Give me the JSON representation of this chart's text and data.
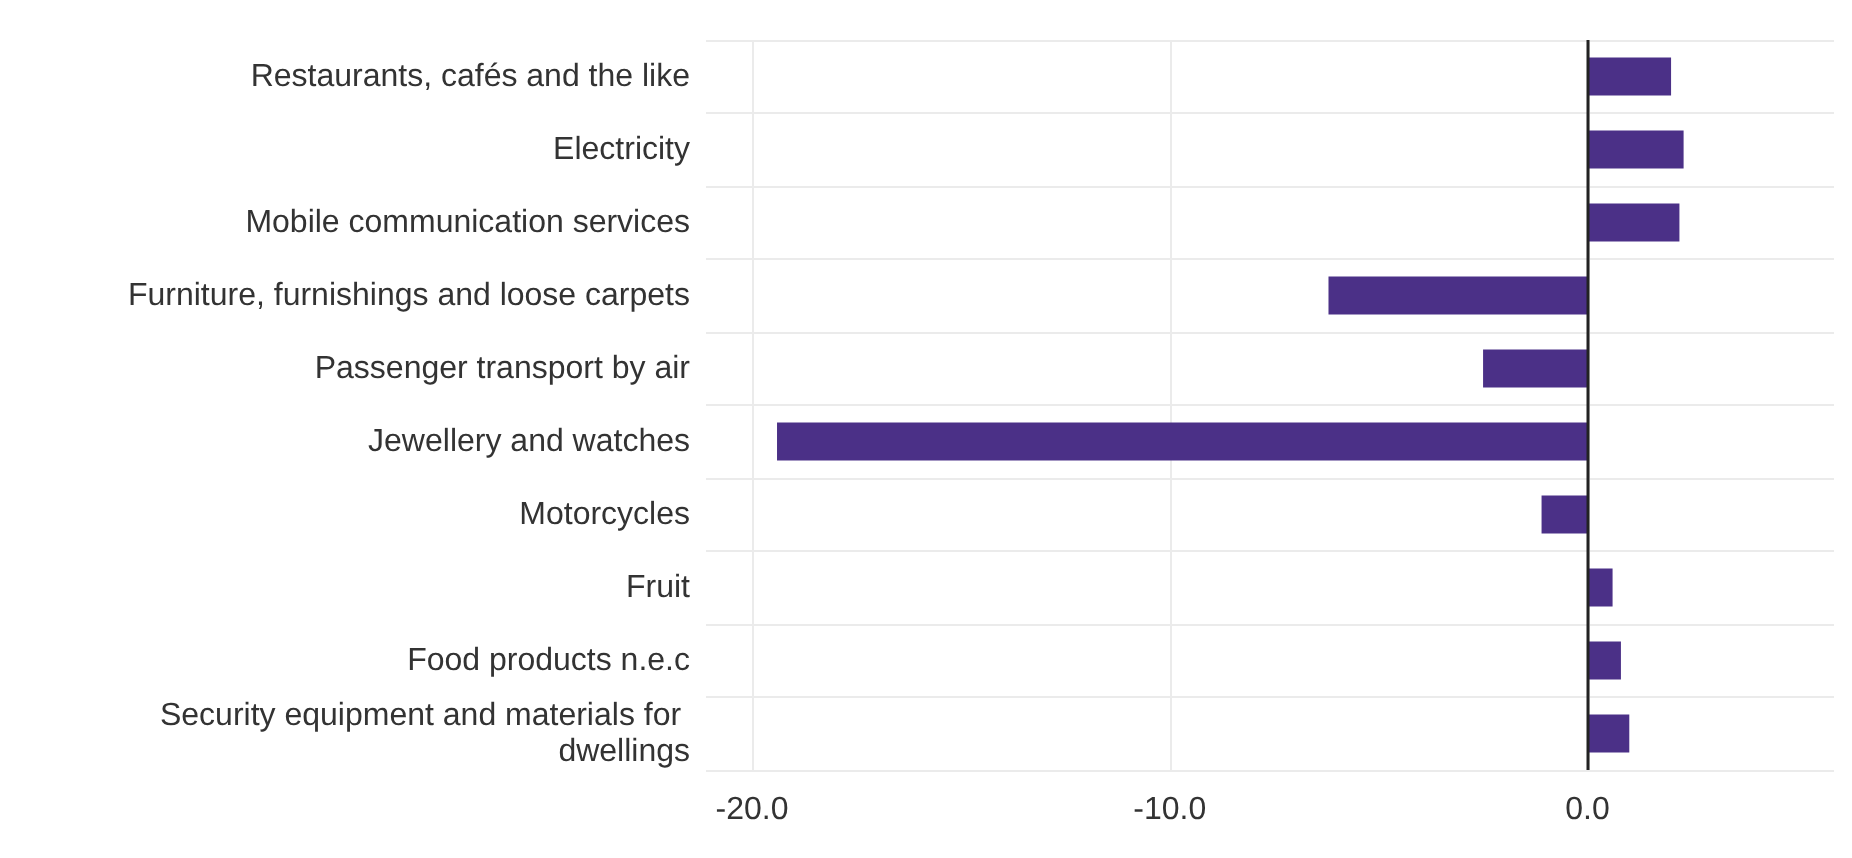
{
  "chart_data": {
    "type": "bar",
    "orientation": "horizontal",
    "categories": [
      "Restaurants, cafés and the like",
      "Electricity",
      "Mobile communication services",
      "Furniture, furnishings and loose carpets",
      "Passenger transport by air",
      "Jewellery and watches",
      "Motorcycles",
      "Fruit",
      "Food products n.e.c",
      "Security equipment and materials for dwellings"
    ],
    "values": [
      2.0,
      2.3,
      2.2,
      -6.2,
      -2.5,
      -19.4,
      -1.1,
      0.6,
      0.8,
      1.0
    ],
    "color": "#4b3087",
    "xlim": [
      -21.1,
      5.9
    ],
    "xticks": [
      {
        "value": -20,
        "label": "-20.0"
      },
      {
        "value": -10,
        "label": "-10.0"
      },
      {
        "value": 0,
        "label": "0.0"
      }
    ],
    "grid": true,
    "ref_lines": [
      {
        "axis": "x",
        "value": 0,
        "label": null,
        "color": "#222222"
      }
    ]
  }
}
